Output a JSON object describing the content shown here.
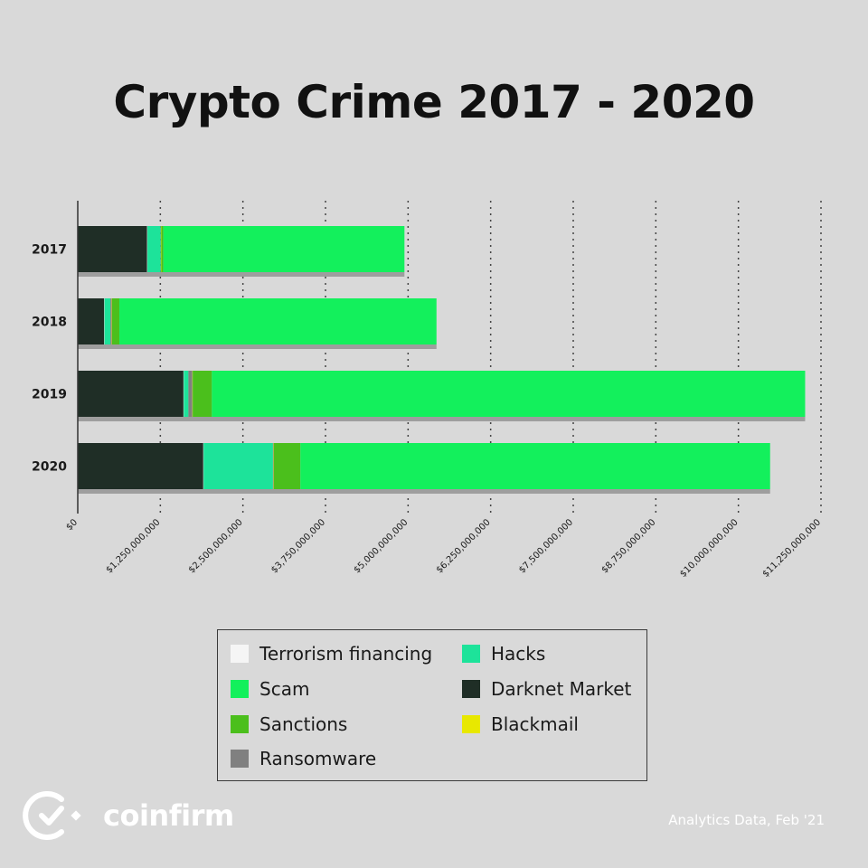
{
  "title": "Crypto Crime 2017 - 2020",
  "chart_data": {
    "type": "bar",
    "orientation": "horizontal",
    "stacked": true,
    "categories": [
      "2017",
      "2018",
      "2019",
      "2020"
    ],
    "x_ticks": [
      0,
      1250000000,
      2500000000,
      3750000000,
      5000000000,
      6250000000,
      7500000000,
      8750000000,
      10000000000,
      11250000000
    ],
    "x_tick_labels": [
      "$0",
      "$1,250,000,000",
      "$2,500,000,000",
      "$3,750,000,000",
      "$5,000,000,000",
      "$6,250,000,000",
      "$7,500,000,000",
      "$8,750,000,000",
      "$10,000,000,000",
      "$11,250,000,000"
    ],
    "xlim": [
      0,
      11250000000
    ],
    "grid": "vertical-dotted",
    "series": [
      {
        "name": "Darknet Market",
        "color": "#1f2e26",
        "values": [
          1050000000,
          400000000,
          1600000000,
          1900000000
        ]
      },
      {
        "name": "Terrorism financing",
        "color": "#f5f5f5",
        "values": [
          5000000,
          5000000,
          5000000,
          5000000
        ]
      },
      {
        "name": "Hacks",
        "color": "#1de39a",
        "values": [
          200000000,
          90000000,
          70000000,
          1050000000
        ]
      },
      {
        "name": "Ransomware",
        "color": "#808080",
        "values": [
          5000000,
          20000000,
          60000000,
          10000000
        ]
      },
      {
        "name": "Blackmail",
        "color": "#e8e800",
        "values": [
          5000000,
          5000000,
          5000000,
          5000000
        ]
      },
      {
        "name": "Sanctions",
        "color": "#4bbf1c",
        "values": [
          30000000,
          110000000,
          290000000,
          400000000
        ]
      },
      {
        "name": "Scam",
        "color": "#13f05c",
        "values": [
          3650000000,
          4800000000,
          8980000000,
          7110000000
        ]
      }
    ]
  },
  "legend": {
    "items": [
      {
        "label": "Terrorism financing",
        "color": "#f5f5f5"
      },
      {
        "label": "Hacks",
        "color": "#1de39a"
      },
      {
        "label": "Scam",
        "color": "#13f05c"
      },
      {
        "label": "Darknet Market",
        "color": "#1f2e26"
      },
      {
        "label": "Sanctions",
        "color": "#4bbf1c"
      },
      {
        "label": "Blackmail",
        "color": "#e8e800"
      },
      {
        "label": "Ransomware",
        "color": "#808080"
      }
    ]
  },
  "brand": {
    "name": "coinfirm",
    "logo_icon": "coinfirm-logo-icon"
  },
  "source": "Analytics Data, Feb '21"
}
